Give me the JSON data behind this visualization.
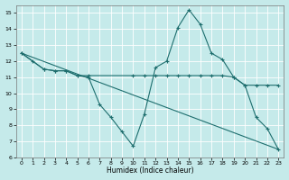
{
  "xlabel": "Humidex (Indice chaleur)",
  "bg_color": "#c5eaea",
  "grid_color": "#ffffff",
  "line_color": "#1e6e6e",
  "xlim": [
    -0.5,
    23.5
  ],
  "ylim": [
    6,
    15.5
  ],
  "xticks": [
    0,
    1,
    2,
    3,
    4,
    5,
    6,
    7,
    8,
    9,
    10,
    11,
    12,
    13,
    14,
    15,
    16,
    17,
    18,
    19,
    20,
    21,
    22,
    23
  ],
  "yticks": [
    6,
    7,
    8,
    9,
    10,
    11,
    12,
    13,
    14,
    15
  ],
  "line1_x": [
    0,
    1,
    2,
    3,
    4,
    5,
    6,
    7,
    8,
    9,
    10,
    11,
    12,
    13,
    14,
    15,
    16,
    17,
    18,
    19,
    20,
    21,
    22,
    23
  ],
  "line1_y": [
    12.5,
    12.0,
    11.5,
    11.4,
    11.4,
    11.1,
    11.0,
    9.3,
    8.5,
    7.6,
    6.7,
    8.7,
    11.6,
    12.0,
    14.1,
    15.2,
    14.3,
    12.5,
    12.1,
    11.0,
    10.5,
    8.5,
    7.8,
    6.5
  ],
  "line2_x": [
    0,
    2,
    3,
    4,
    5,
    6,
    10,
    11,
    12,
    13,
    14,
    15,
    16,
    17,
    18,
    19,
    20,
    21,
    22,
    23
  ],
  "line2_y": [
    12.5,
    11.5,
    11.4,
    11.4,
    11.1,
    11.1,
    11.1,
    11.1,
    11.1,
    11.1,
    11.1,
    11.1,
    11.1,
    11.1,
    11.1,
    11.0,
    10.5,
    10.5,
    10.5,
    10.5
  ],
  "line3_x": [
    0,
    23
  ],
  "line3_y": [
    12.5,
    6.5
  ]
}
